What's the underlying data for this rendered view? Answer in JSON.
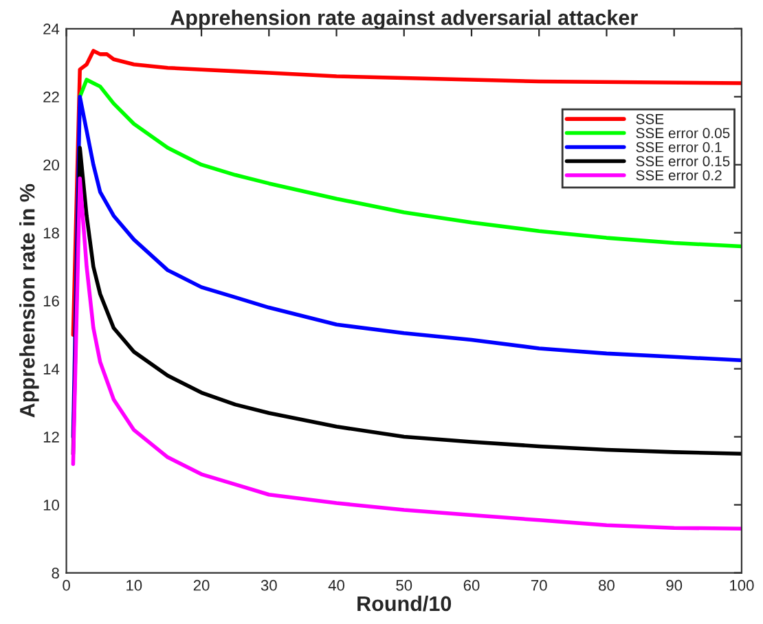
{
  "chart_data": {
    "type": "line",
    "title": "Apprehension rate against adversarial attacker",
    "xlabel": "Round/10",
    "ylabel": "Apprehension rate in %",
    "x": [
      1,
      2,
      3,
      4,
      5,
      7,
      10,
      15,
      20,
      25,
      30,
      40,
      50,
      60,
      70,
      80,
      90,
      100
    ],
    "series": [
      {
        "name": "SSE",
        "color": "#ff0000",
        "x": [
          1,
          2,
          3,
          4,
          5,
          6,
          7,
          8,
          10,
          15,
          20,
          25,
          30,
          40,
          50,
          60,
          70,
          100
        ],
        "values": [
          15,
          22.8,
          22.95,
          23.35,
          23.25,
          23.25,
          23.1,
          23.05,
          22.95,
          22.85,
          22.8,
          22.75,
          22.7,
          22.6,
          22.55,
          22.5,
          22.45,
          22.4
        ]
      },
      {
        "name": "SSE error 0.05",
        "color": "#00ff00",
        "values": [
          null,
          22.0,
          22.5,
          22.4,
          22.3,
          21.8,
          21.2,
          20.5,
          20.0,
          19.7,
          19.45,
          19.0,
          18.6,
          18.3,
          18.05,
          17.85,
          17.7,
          17.6
        ]
      },
      {
        "name": "SSE error 0.1",
        "color": "#0000ff",
        "values": [
          12.0,
          22.0,
          21.0,
          20.0,
          19.2,
          18.5,
          17.8,
          16.9,
          16.4,
          16.1,
          15.8,
          15.3,
          15.05,
          14.85,
          14.6,
          14.45,
          14.35,
          14.25
        ]
      },
      {
        "name": "SSE error 0.15",
        "color": "#000000",
        "values": [
          11.5,
          20.5,
          18.5,
          17.0,
          16.2,
          15.2,
          14.5,
          13.8,
          13.3,
          12.95,
          12.7,
          12.3,
          12.0,
          11.85,
          11.72,
          11.62,
          11.55,
          11.5
        ]
      },
      {
        "name": "SSE error 0.2",
        "color": "#ff00ff",
        "values": [
          11.2,
          19.6,
          17.0,
          15.2,
          14.2,
          13.1,
          12.2,
          11.4,
          10.9,
          10.6,
          10.3,
          10.05,
          9.85,
          9.7,
          9.55,
          9.4,
          9.32,
          9.3
        ]
      }
    ],
    "xlim": [
      0,
      100
    ],
    "xticks": [
      0,
      10,
      20,
      30,
      40,
      50,
      60,
      70,
      80,
      90,
      100
    ],
    "ylim": [
      8,
      24
    ],
    "yticks": [
      8,
      10,
      12,
      14,
      16,
      18,
      20,
      22,
      24
    ],
    "legend": "right",
    "marker": "none",
    "line_style": "solid"
  }
}
